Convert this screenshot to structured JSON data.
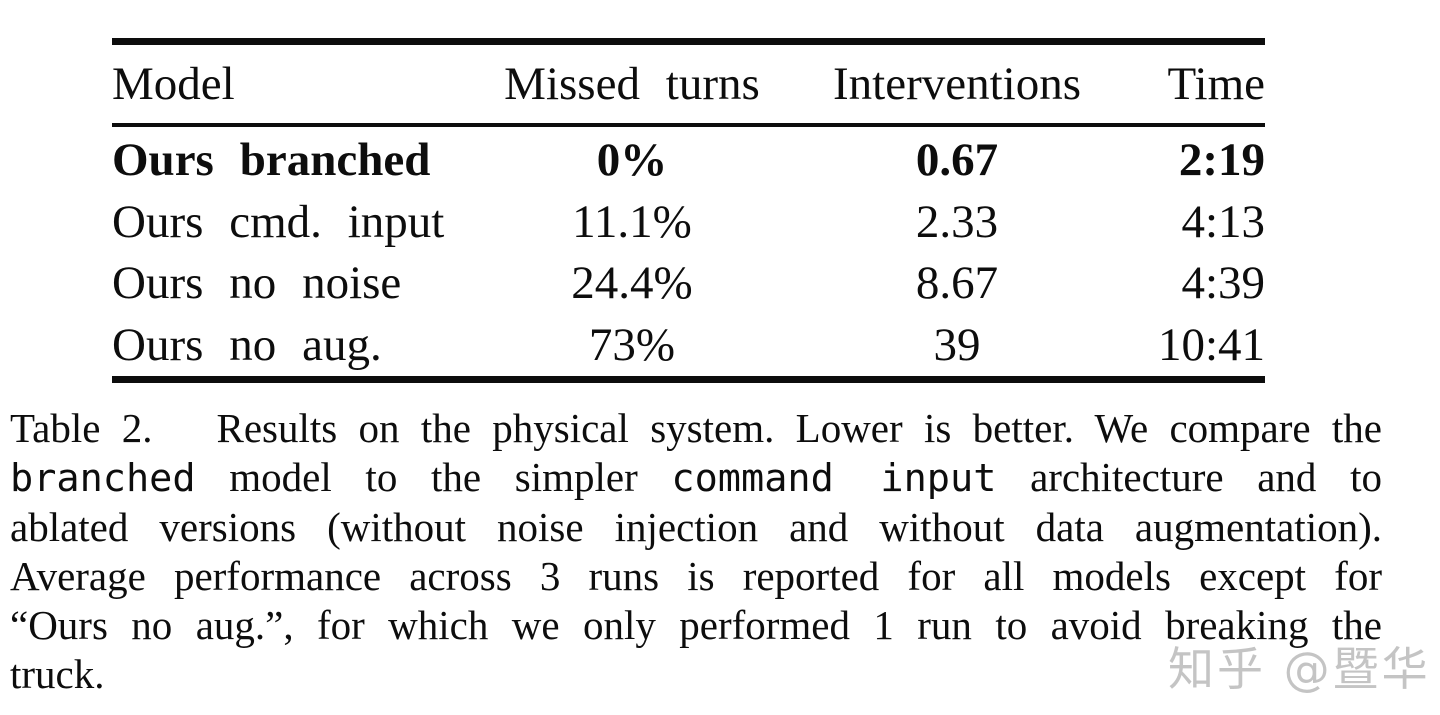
{
  "page": {
    "background": "#ffffff",
    "text_color": "#0d0d0d"
  },
  "table": {
    "columns": [
      {
        "id": "model",
        "label": "Model",
        "align": "left"
      },
      {
        "id": "missed_turns",
        "label": "Missed turns",
        "align": "center"
      },
      {
        "id": "interventions",
        "label": "Interventions",
        "align": "center"
      },
      {
        "id": "time",
        "label": "Time",
        "align": "right"
      }
    ],
    "rows": [
      {
        "model": "Ours branched",
        "missed_turns": "0%",
        "interventions": "0.67",
        "time": "2:19",
        "bold": true
      },
      {
        "model": "Ours cmd. input",
        "missed_turns": "11.1%",
        "interventions": "2.33",
        "time": "4:13",
        "bold": false
      },
      {
        "model": "Ours no noise",
        "missed_turns": "24.4%",
        "interventions": "8.67",
        "time": "4:39",
        "bold": false
      },
      {
        "model": "Ours no aug.",
        "missed_turns": "73%",
        "interventions": "39",
        "time": "10:41",
        "bold": false
      }
    ]
  },
  "caption": {
    "lines": [
      {
        "justify": true,
        "segments": [
          {
            "text": "Table 2.   Results on the physical system. Lower is better. We compare the",
            "mono": false
          }
        ]
      },
      {
        "justify": true,
        "segments": [
          {
            "text": "branched",
            "mono": true
          },
          {
            "text": " model to the simpler ",
            "mono": false
          },
          {
            "text": "command input",
            "mono": true
          },
          {
            "text": " architecture and to",
            "mono": false
          }
        ]
      },
      {
        "justify": true,
        "segments": [
          {
            "text": "ablated versions (without noise injection and without data augmentation).",
            "mono": false
          }
        ]
      },
      {
        "justify": true,
        "segments": [
          {
            "text": "Average performance across 3 runs is reported for all models except for",
            "mono": false
          }
        ]
      },
      {
        "justify": true,
        "segments": [
          {
            "text": "“Ours no aug.”, for which we only performed 1 run to avoid breaking the",
            "mono": false
          }
        ]
      },
      {
        "justify": false,
        "segments": [
          {
            "text": "truck.",
            "mono": false
          }
        ]
      }
    ]
  },
  "watermark": {
    "text": "知乎 @暨华",
    "color": "#c4c4c4"
  }
}
